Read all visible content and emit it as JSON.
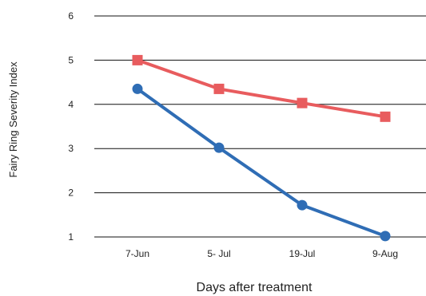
{
  "chart_data": {
    "type": "line",
    "title": "",
    "xlabel": "Days after treatment",
    "ylabel": "Fairy Ring Severity Index",
    "categories": [
      "7-Jun",
      "5- Jul",
      "19-Jul",
      "9-Aug"
    ],
    "ylim": [
      1,
      6
    ],
    "yticks": [
      1,
      2,
      3,
      4,
      5,
      6
    ],
    "grid": "horizontal",
    "legend": "none",
    "series": [
      {
        "values": [
          5.0,
          4.35,
          4.03,
          3.72
        ],
        "color": "#e85c5e",
        "marker": "square"
      },
      {
        "values": [
          4.35,
          3.02,
          1.72,
          1.02
        ],
        "color": "#2f6db5",
        "marker": "circle"
      }
    ]
  }
}
